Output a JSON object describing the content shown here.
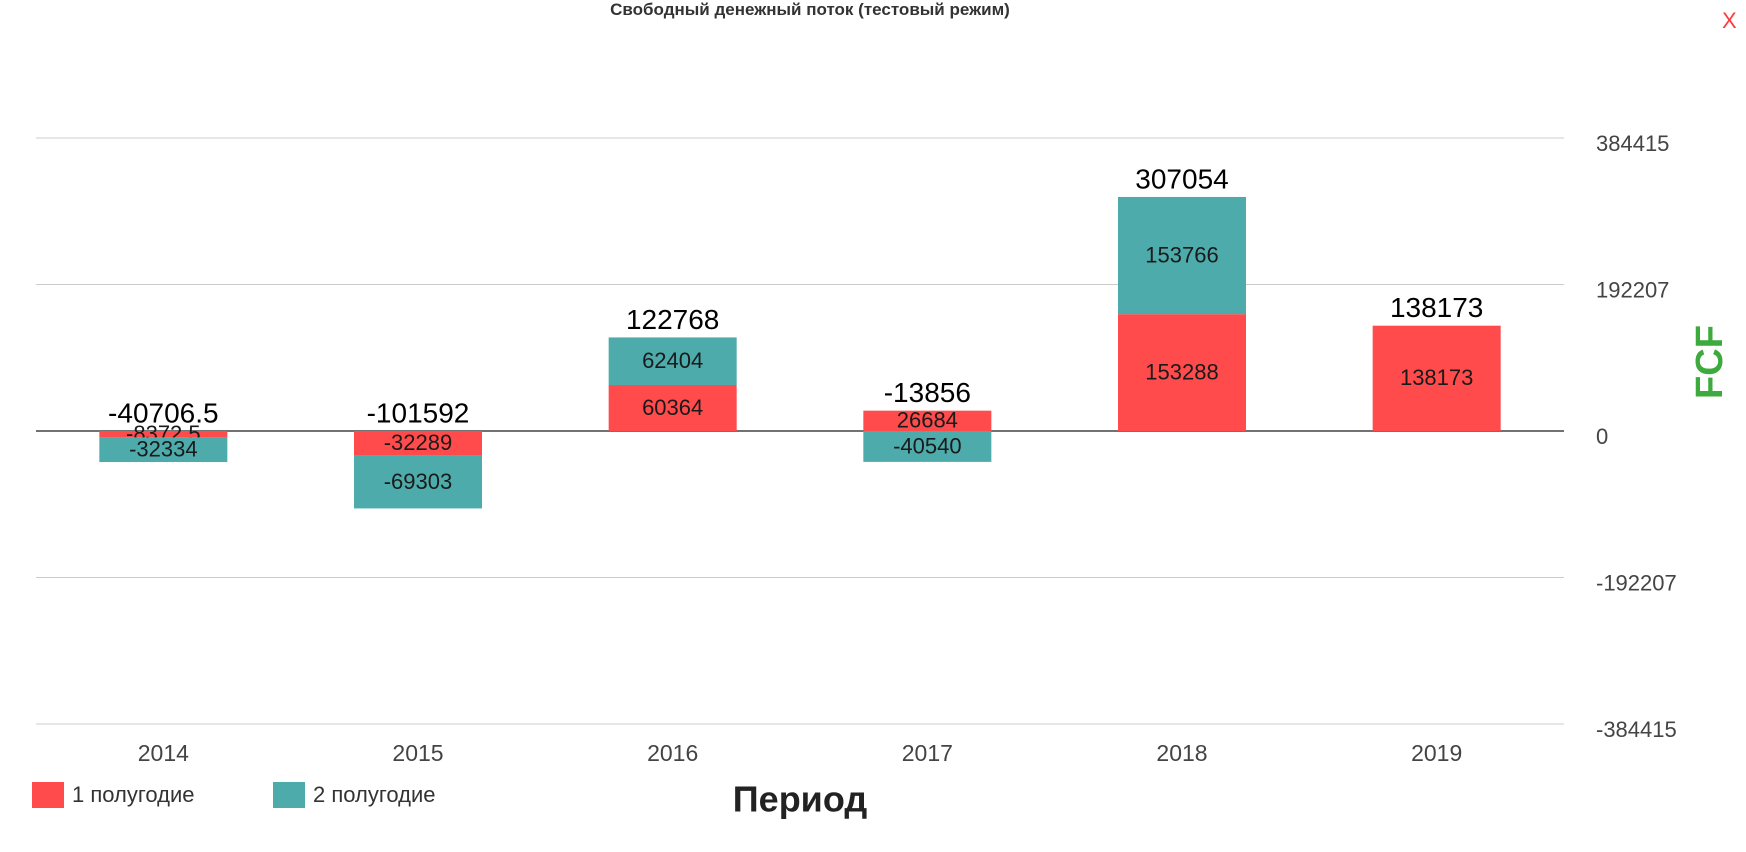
{
  "title": "Свободный денежный поток (тестовый режим)",
  "close_label": "X",
  "chart_data": {
    "type": "bar",
    "stacked": true,
    "categories": [
      "2014",
      "2015",
      "2016",
      "2017",
      "2018",
      "2019"
    ],
    "series": [
      {
        "name": "1 полугодие",
        "color": "#ff4b4b",
        "values": [
          -8372.5,
          -32289,
          60364,
          26684,
          153288,
          138173
        ]
      },
      {
        "name": "2 полугодие",
        "color": "#4dabab",
        "values": [
          -32334,
          -69303,
          62404,
          -40540,
          153766,
          null
        ]
      }
    ],
    "totals": [
      -40706.5,
      -101592,
      122768,
      -13856,
      307054,
      138173
    ],
    "xlabel": "Период",
    "ylabel": "FCF",
    "yticks": [
      384415,
      192207,
      0,
      -192207,
      -384415
    ],
    "ylim": [
      -384415,
      384415
    ],
    "grid": true,
    "legend_position": "bottom-left",
    "ylabel_color": "#3daa3d"
  }
}
